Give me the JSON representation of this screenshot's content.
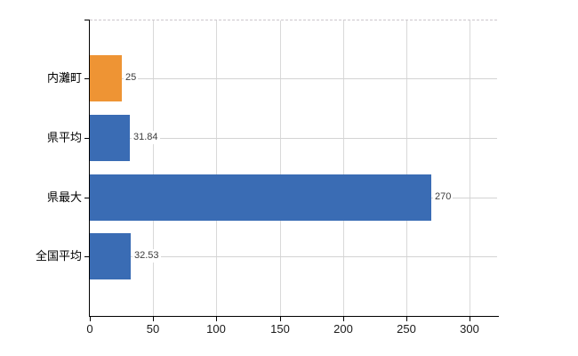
{
  "chart_data": {
    "type": "bar",
    "orientation": "horizontal",
    "title": "",
    "xlabel": "",
    "ylabel": "",
    "categories": [
      "内灘町",
      "県平均",
      "県最大",
      "全国平均"
    ],
    "values": [
      25,
      31.84,
      270,
      32.53
    ],
    "value_labels": [
      "25",
      "31.84",
      "270",
      "32.53"
    ],
    "series_colors": [
      "#ee9434",
      "#3a6cb4",
      "#3a6cb4",
      "#3a6cb4"
    ],
    "highlighted_category": "内灘町",
    "x_tick_values": [
      0,
      50,
      100,
      150,
      200,
      250,
      300
    ],
    "x_tick_labels": [
      "0",
      "50",
      "100",
      "150",
      "200",
      "250",
      "300"
    ],
    "xlim": [
      0,
      322
    ],
    "grid": "vertical gridlines at ticks, horizontal line per category",
    "legend_position": "none"
  },
  "colors": {
    "background": "#ffffff",
    "axis": "#000000",
    "vertical_gridline": "#d9d9d9",
    "category_gridline": "#d3d3d3",
    "plot_top_border": "#ccc6cc",
    "bar_blue": "#3a6cb4",
    "bar_orange": "#ee9434",
    "category_label_text": "#000000",
    "value_label_text": "#3c3c3c",
    "tick_label_text": "#1a1a1a"
  }
}
